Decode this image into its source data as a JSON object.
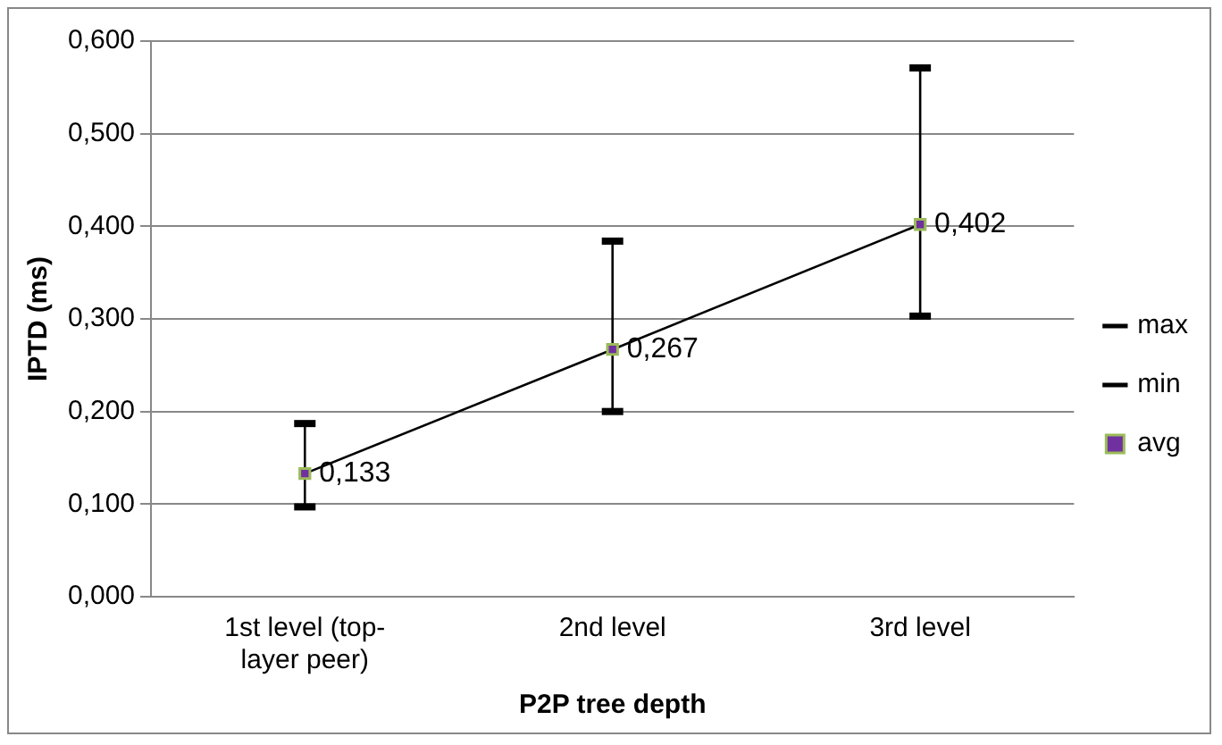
{
  "chart_data": {
    "type": "line",
    "xlabel": "P2P tree depth",
    "ylabel": "IPTD (ms)",
    "categories": [
      "1st level (top-layer peer)",
      "2nd level",
      "3rd level"
    ],
    "series": [
      {
        "name": "max",
        "type": "scatter",
        "color": "#000000",
        "values": [
          0.187,
          0.384,
          0.571
        ]
      },
      {
        "name": "min",
        "type": "scatter",
        "color": "#000000",
        "values": [
          0.097,
          0.2,
          0.303
        ]
      },
      {
        "name": "avg",
        "color": "#7030a0",
        "marker": "square",
        "values": [
          0.133,
          0.267,
          0.402
        ],
        "value_labels": [
          "0,133",
          "0,267",
          "0,402"
        ]
      }
    ],
    "ylim": [
      0,
      0.6
    ],
    "yticks": [
      {
        "value": 0,
        "label": "0,000"
      },
      {
        "value": 0.1,
        "label": "0,100"
      },
      {
        "value": 0.2,
        "label": "0,200"
      },
      {
        "value": 0.3,
        "label": "0,300"
      },
      {
        "value": 0.4,
        "label": "0,400"
      },
      {
        "value": 0.5,
        "label": "0,500"
      },
      {
        "value": 0.6,
        "label": "0,600"
      }
    ],
    "grid": "y",
    "legend": "right"
  }
}
